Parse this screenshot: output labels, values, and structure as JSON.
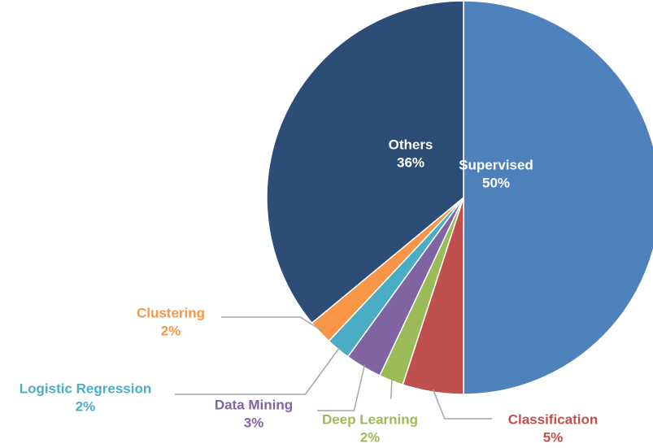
{
  "chart_data": {
    "type": "pie",
    "categories": [
      "Supervised",
      "Classification",
      "Deep Learning",
      "Data Mining",
      "Logistic Regression",
      "Clustering",
      "Others"
    ],
    "values": [
      50,
      5,
      2,
      3,
      2,
      2,
      36
    ],
    "value_labels": [
      "50%",
      "5%",
      "2%",
      "3%",
      "2%",
      "2%",
      "36%"
    ],
    "colors": [
      "#4f81bd",
      "#c0504d",
      "#9bbb59",
      "#8064a2",
      "#4bacc6",
      "#f79646",
      "#2c4d75"
    ]
  }
}
